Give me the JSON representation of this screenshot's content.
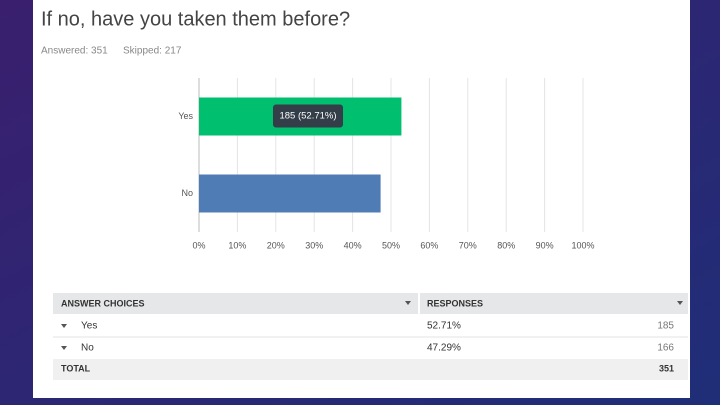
{
  "chart_data": {
    "type": "hbar",
    "title": "If no, have you taken them before?",
    "answered": "Answered: 351",
    "skipped": "Skipped: 217",
    "categories": [
      "Yes",
      "No"
    ],
    "values": [
      52.71,
      47.29
    ],
    "value_labels": [
      "185 (52.71%)",
      null
    ],
    "colors": [
      "#00bf6f",
      "#507cb6"
    ],
    "xlim": [
      0,
      100
    ],
    "xticks": [
      {
        "value": 0,
        "label": "0%"
      },
      {
        "value": 10,
        "label": "10%"
      },
      {
        "value": 20,
        "label": "20%"
      },
      {
        "value": 30,
        "label": "30%"
      },
      {
        "value": 40,
        "label": "40%"
      },
      {
        "value": 50,
        "label": "50%"
      },
      {
        "value": 60,
        "label": "60%"
      },
      {
        "value": 70,
        "label": "70%"
      },
      {
        "value": 80,
        "label": "80%"
      },
      {
        "value": 90,
        "label": "90%"
      },
      {
        "value": 100,
        "label": "100%"
      }
    ],
    "grid": true
  },
  "table": {
    "headers": [
      "ANSWER CHOICES",
      "RESPONSES"
    ],
    "rows": [
      [
        "Yes",
        "52.71%",
        "185"
      ],
      [
        "No",
        "47.29%",
        "166"
      ]
    ],
    "total": [
      "TOTAL",
      "351"
    ]
  }
}
